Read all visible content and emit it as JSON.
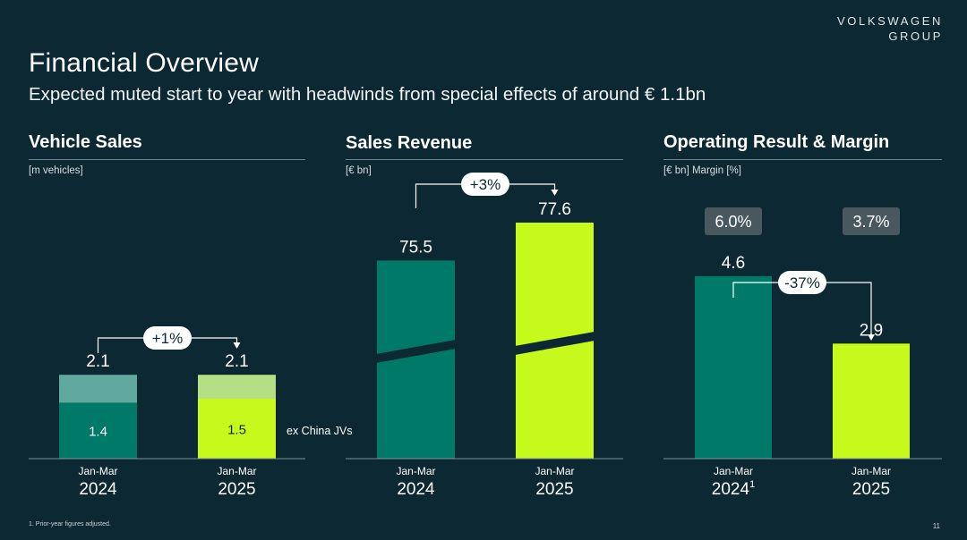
{
  "brand": {
    "line1": "VOLKSWAGEN",
    "line2": "GROUP"
  },
  "title": "Financial Overview",
  "subtitle": "Expected muted start to year with headwinds from special effects of around € 1.1bn",
  "footnote": "1. Prior-year figures adjusted.",
  "page_number": "11",
  "colors": {
    "background": "#0c2832",
    "teal": "#007a68",
    "teal_light": "#61a89f",
    "lime": "#c6fa1c",
    "lime_light": "#b5df84",
    "badge": "#48585e"
  },
  "chart_data": [
    {
      "type": "bar",
      "title": "Vehicle Sales",
      "unit_label": "[m vehicles]",
      "categories": [
        {
          "period": "Jan-Mar",
          "year": "2024"
        },
        {
          "period": "Jan-Mar",
          "year": "2025"
        }
      ],
      "series": [
        {
          "name": "ex China JVs",
          "values": [
            1.4,
            1.5
          ],
          "labels": [
            "1.4",
            "1.5"
          ]
        }
      ],
      "totals": [
        2.1,
        2.1
      ],
      "total_labels": [
        "2.1",
        "2.1"
      ],
      "change_label": "+1%",
      "ylim": [
        0,
        7.5
      ]
    },
    {
      "type": "bar",
      "title": "Sales Revenue",
      "unit_label": "[€ bn]",
      "categories": [
        {
          "period": "Jan-Mar",
          "year": "2024"
        },
        {
          "period": "Jan-Mar",
          "year": "2025"
        }
      ],
      "values": [
        75.5,
        77.6
      ],
      "value_labels": [
        "75.5",
        "77.6"
      ],
      "axis_break": true,
      "change_label": "+3%"
    },
    {
      "type": "bar",
      "title": "Operating Result & Margin",
      "unit_label": "[€ bn] Margin [%]",
      "categories": [
        {
          "period": "Jan-Mar",
          "year": "2024",
          "footnote_mark": "1"
        },
        {
          "period": "Jan-Mar",
          "year": "2025",
          "footnote_mark": ""
        }
      ],
      "values": [
        4.6,
        2.9
      ],
      "value_labels": [
        "4.6",
        "2.9"
      ],
      "margins": [
        6.0,
        3.7
      ],
      "margin_labels": [
        "6.0%",
        "3.7%"
      ],
      "change_label": "-37%",
      "ylim": [
        0,
        7.55
      ]
    }
  ]
}
